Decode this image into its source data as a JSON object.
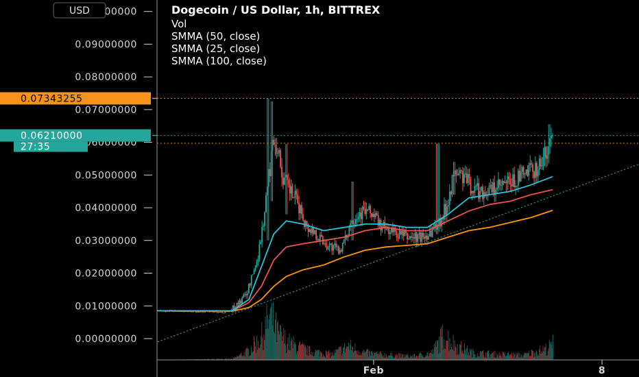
{
  "legend": {
    "title": "Dogecoin / US Dollar, 1h, BITTREX",
    "lines": [
      "Vol",
      "SMMA (50, close)",
      "SMMA (25, close)",
      "SMMA (100, close)"
    ]
  },
  "currency_button": "USD",
  "tags": {
    "high": {
      "label": "0.07343255",
      "value": 0.07343255,
      "color": "#f7931a"
    },
    "last": {
      "label": "0.06210000",
      "value": 0.0621,
      "color": "#26a69a"
    },
    "countdown": {
      "label": "27:35",
      "color": "#26a69a"
    }
  },
  "colors": {
    "up": "#26a69a",
    "down": "#ef5350",
    "smma25": "#ef5350",
    "smma50": "#26c6da",
    "smma100": "#ff9800",
    "trendline": "#26a69a",
    "axis": "#d6d6d6"
  },
  "chart_data": {
    "type": "candlestick",
    "title": "Dogecoin / US Dollar, 1h, BITTREX",
    "y_axis_side": "left",
    "ylim": [
      -0.0065,
      0.1035
    ],
    "y_ticks": [
      {
        "value": 0.1,
        "label": "0.10000000"
      },
      {
        "value": 0.09,
        "label": "0.09000000"
      },
      {
        "value": 0.08,
        "label": "0.08000000"
      },
      {
        "value": 0.07,
        "label": "0.07000000"
      },
      {
        "value": 0.06,
        "label": "0.06000000"
      },
      {
        "value": 0.05,
        "label": "0.05000000"
      },
      {
        "value": 0.04,
        "label": "0.04000000"
      },
      {
        "value": 0.03,
        "label": "0.03000000"
      },
      {
        "value": 0.02,
        "label": "0.02000000"
      },
      {
        "value": 0.01,
        "label": "0.01000000"
      },
      {
        "value": 0.0,
        "label": "0.00000000"
      }
    ],
    "x_ticks": [
      {
        "pos": 0.485,
        "label": "Feb"
      },
      {
        "pos": 0.998,
        "label": "8"
      }
    ],
    "horizontal_lines": [
      {
        "value": 0.07343255,
        "color": "#f7931a"
      },
      {
        "value": 0.0621,
        "color": "#26a69a"
      },
      {
        "value": 0.0597,
        "color": "#f7931a"
      }
    ],
    "price_path": [
      [
        0.0,
        0.0085
      ],
      [
        0.13,
        0.0082
      ],
      [
        0.15,
        0.0079
      ],
      [
        0.175,
        0.0085
      ],
      [
        0.2,
        0.0115
      ],
      [
        0.215,
        0.014
      ],
      [
        0.24,
        0.024
      ],
      [
        0.255,
        0.036
      ],
      [
        0.27,
        0.052
      ],
      [
        0.28,
        0.062
      ],
      [
        0.29,
        0.058
      ],
      [
        0.3,
        0.05
      ],
      [
        0.315,
        0.046
      ],
      [
        0.33,
        0.043
      ],
      [
        0.345,
        0.039
      ],
      [
        0.36,
        0.034
      ],
      [
        0.375,
        0.033
      ],
      [
        0.39,
        0.031
      ],
      [
        0.405,
        0.029
      ],
      [
        0.42,
        0.028
      ],
      [
        0.435,
        0.027
      ],
      [
        0.45,
        0.029
      ],
      [
        0.465,
        0.036
      ],
      [
        0.48,
        0.038
      ],
      [
        0.5,
        0.039
      ],
      [
        0.52,
        0.038
      ],
      [
        0.54,
        0.034
      ],
      [
        0.56,
        0.033
      ],
      [
        0.58,
        0.032
      ],
      [
        0.6,
        0.031
      ],
      [
        0.62,
        0.031
      ],
      [
        0.64,
        0.031
      ],
      [
        0.66,
        0.033
      ],
      [
        0.68,
        0.036
      ],
      [
        0.695,
        0.04
      ],
      [
        0.705,
        0.046
      ],
      [
        0.72,
        0.051
      ],
      [
        0.74,
        0.049
      ],
      [
        0.76,
        0.046
      ],
      [
        0.78,
        0.045
      ],
      [
        0.8,
        0.045
      ],
      [
        0.82,
        0.046
      ],
      [
        0.84,
        0.047
      ],
      [
        0.86,
        0.048
      ],
      [
        0.88,
        0.05
      ],
      [
        0.9,
        0.051
      ],
      [
        0.92,
        0.053
      ],
      [
        0.935,
        0.056
      ],
      [
        0.945,
        0.06
      ],
      [
        0.952,
        0.0621
      ]
    ],
    "spikes": [
      {
        "at": 0.265,
        "high": 0.0734,
        "low": 0.03
      },
      {
        "at": 0.275,
        "high": 0.0725,
        "low": 0.042
      },
      {
        "at": 0.31,
        "high": 0.0595,
        "low": 0.038
      },
      {
        "at": 0.47,
        "high": 0.048,
        "low": 0.03
      },
      {
        "at": 0.675,
        "high": 0.0595,
        "low": 0.034
      },
      {
        "at": 0.715,
        "high": 0.054,
        "low": 0.044
      },
      {
        "at": 0.945,
        "high": 0.0655,
        "low": 0.057
      }
    ],
    "smma25": [
      [
        0.0,
        0.0085
      ],
      [
        0.18,
        0.0085
      ],
      [
        0.22,
        0.011
      ],
      [
        0.25,
        0.016
      ],
      [
        0.28,
        0.024
      ],
      [
        0.31,
        0.028
      ],
      [
        0.35,
        0.029
      ],
      [
        0.4,
        0.03
      ],
      [
        0.45,
        0.031
      ],
      [
        0.5,
        0.033
      ],
      [
        0.55,
        0.034
      ],
      [
        0.6,
        0.033
      ],
      [
        0.65,
        0.033
      ],
      [
        0.7,
        0.036
      ],
      [
        0.75,
        0.039
      ],
      [
        0.8,
        0.041
      ],
      [
        0.85,
        0.042
      ],
      [
        0.9,
        0.044
      ],
      [
        0.952,
        0.0455
      ]
    ],
    "smma50": [
      [
        0.0,
        0.0085
      ],
      [
        0.18,
        0.0085
      ],
      [
        0.22,
        0.012
      ],
      [
        0.25,
        0.022
      ],
      [
        0.28,
        0.032
      ],
      [
        0.31,
        0.036
      ],
      [
        0.35,
        0.035
      ],
      [
        0.4,
        0.033
      ],
      [
        0.45,
        0.034
      ],
      [
        0.5,
        0.035
      ],
      [
        0.55,
        0.035
      ],
      [
        0.6,
        0.034
      ],
      [
        0.65,
        0.034
      ],
      [
        0.7,
        0.038
      ],
      [
        0.75,
        0.043
      ],
      [
        0.8,
        0.044
      ],
      [
        0.85,
        0.045
      ],
      [
        0.9,
        0.047
      ],
      [
        0.952,
        0.0495
      ]
    ],
    "smma100": [
      [
        0.0,
        0.0085
      ],
      [
        0.18,
        0.0084
      ],
      [
        0.22,
        0.0095
      ],
      [
        0.25,
        0.012
      ],
      [
        0.28,
        0.016
      ],
      [
        0.31,
        0.019
      ],
      [
        0.35,
        0.021
      ],
      [
        0.4,
        0.0225
      ],
      [
        0.45,
        0.025
      ],
      [
        0.5,
        0.027
      ],
      [
        0.55,
        0.028
      ],
      [
        0.6,
        0.0285
      ],
      [
        0.65,
        0.029
      ],
      [
        0.7,
        0.031
      ],
      [
        0.75,
        0.033
      ],
      [
        0.8,
        0.034
      ],
      [
        0.85,
        0.0355
      ],
      [
        0.9,
        0.037
      ],
      [
        0.952,
        0.0392
      ]
    ],
    "trendline": {
      "from": [
        0.0,
        -0.001
      ],
      "to": [
        1.0,
        0.05
      ]
    },
    "volume_profile": [
      [
        0.0,
        0.0
      ],
      [
        0.18,
        0.02
      ],
      [
        0.22,
        0.2
      ],
      [
        0.25,
        0.5
      ],
      [
        0.27,
        0.95
      ],
      [
        0.29,
        0.55
      ],
      [
        0.32,
        0.35
      ],
      [
        0.36,
        0.2
      ],
      [
        0.42,
        0.12
      ],
      [
        0.46,
        0.3
      ],
      [
        0.5,
        0.15
      ],
      [
        0.56,
        0.1
      ],
      [
        0.62,
        0.08
      ],
      [
        0.66,
        0.15
      ],
      [
        0.69,
        0.55
      ],
      [
        0.72,
        0.3
      ],
      [
        0.76,
        0.15
      ],
      [
        0.82,
        0.12
      ],
      [
        0.88,
        0.1
      ],
      [
        0.94,
        0.25
      ],
      [
        0.952,
        0.35
      ]
    ]
  }
}
